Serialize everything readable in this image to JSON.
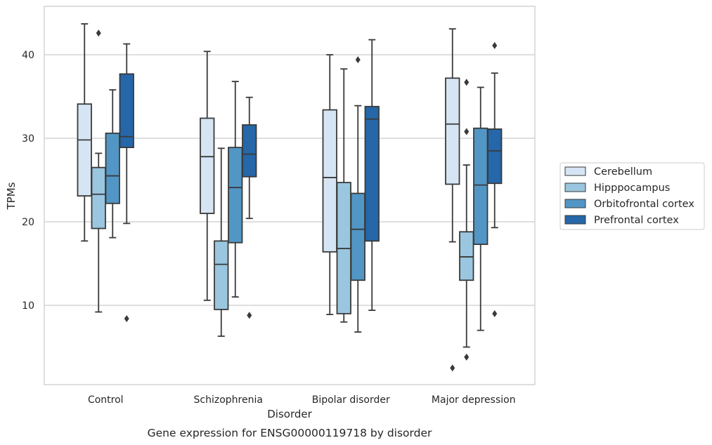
{
  "chart_data": {
    "type": "box",
    "caption": "Gene expression for ENSG00000119718 by disorder",
    "xlabel": "Disorder",
    "ylabel": "TPMs",
    "ylim": [
      0.5,
      45.8
    ],
    "yticks": [
      10,
      20,
      30,
      40
    ],
    "grid": "horizontal",
    "legend_position": "right",
    "categories": [
      "Control",
      "Schizophrenia",
      "Bipolar disorder",
      "Major depression"
    ],
    "series": [
      {
        "name": "Cerebellum",
        "color": "#d6e5f4",
        "boxes": [
          {
            "whislo": 17.7,
            "q1": 23.1,
            "med": 29.8,
            "q3": 34.1,
            "whishi": 43.7,
            "fliers": []
          },
          {
            "whislo": 10.6,
            "q1": 21.0,
            "med": 27.8,
            "q3": 32.4,
            "whishi": 40.4,
            "fliers": []
          },
          {
            "whislo": 8.9,
            "q1": 16.4,
            "med": 25.3,
            "q3": 33.4,
            "whishi": 40.0,
            "fliers": []
          },
          {
            "whislo": 17.6,
            "q1": 24.5,
            "med": 31.7,
            "q3": 37.2,
            "whishi": 43.1,
            "fliers": [
              2.5
            ]
          }
        ]
      },
      {
        "name": "Hipppocampus",
        "color": "#9ac6df",
        "boxes": [
          {
            "whislo": 9.2,
            "q1": 19.2,
            "med": 23.3,
            "q3": 26.5,
            "whishi": 28.2,
            "fliers": [
              42.6
            ]
          },
          {
            "whislo": 6.3,
            "q1": 9.5,
            "med": 14.9,
            "q3": 17.7,
            "whishi": 28.8,
            "fliers": []
          },
          {
            "whislo": 8.0,
            "q1": 9.0,
            "med": 16.8,
            "q3": 24.7,
            "whishi": 38.3,
            "fliers": []
          },
          {
            "whislo": 5.0,
            "q1": 13.0,
            "med": 15.8,
            "q3": 18.8,
            "whishi": 26.8,
            "fliers": [
              3.8,
              30.8,
              36.7
            ]
          }
        ]
      },
      {
        "name": "Orbitofrontal cortex",
        "color": "#5296c5",
        "boxes": [
          {
            "whislo": 18.1,
            "q1": 22.2,
            "med": 25.5,
            "q3": 30.6,
            "whishi": 35.8,
            "fliers": []
          },
          {
            "whislo": 11.0,
            "q1": 17.5,
            "med": 24.1,
            "q3": 28.9,
            "whishi": 36.8,
            "fliers": []
          },
          {
            "whislo": 6.8,
            "q1": 13.0,
            "med": 19.1,
            "q3": 23.4,
            "whishi": 33.9,
            "fliers": [
              39.4
            ]
          },
          {
            "whislo": 7.0,
            "q1": 17.3,
            "med": 24.4,
            "q3": 31.2,
            "whishi": 36.1,
            "fliers": []
          }
        ]
      },
      {
        "name": "Prefrontal cortex",
        "color": "#2567a8",
        "boxes": [
          {
            "whislo": 19.8,
            "q1": 28.9,
            "med": 30.2,
            "q3": 37.7,
            "whishi": 41.3,
            "fliers": [
              8.4
            ]
          },
          {
            "whislo": 20.4,
            "q1": 25.4,
            "med": 28.1,
            "q3": 31.6,
            "whishi": 34.9,
            "fliers": [
              8.8
            ]
          },
          {
            "whislo": 9.4,
            "q1": 17.7,
            "med": 32.3,
            "q3": 33.8,
            "whishi": 41.8,
            "fliers": []
          },
          {
            "whislo": 19.3,
            "q1": 24.6,
            "med": 28.5,
            "q3": 31.1,
            "whishi": 37.8,
            "fliers": [
              9.0,
              41.1
            ]
          }
        ]
      }
    ]
  }
}
